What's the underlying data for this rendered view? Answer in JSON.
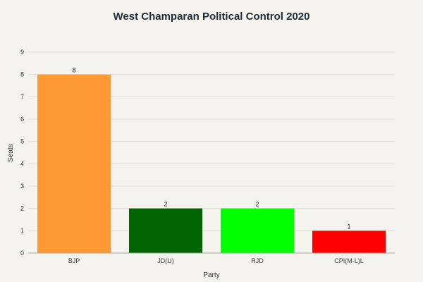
{
  "chart_data": {
    "type": "bar",
    "title": "West Champaran Political Control 2020",
    "xlabel": "Party",
    "ylabel": "Seats",
    "categories": [
      "BJP",
      "JD(U)",
      "RJD",
      "CPI(M-L)L"
    ],
    "values": [
      8,
      2,
      2,
      1
    ],
    "data_labels": [
      "8",
      "2",
      "2",
      "1"
    ],
    "colors": [
      "#ff9933",
      "#006400",
      "#00ff00",
      "#ff0000"
    ],
    "ylim": [
      0,
      9
    ],
    "yticks": [
      "0",
      "1",
      "2",
      "3",
      "4",
      "5",
      "6",
      "7",
      "8",
      "9"
    ],
    "grid": true,
    "legend": "none"
  }
}
